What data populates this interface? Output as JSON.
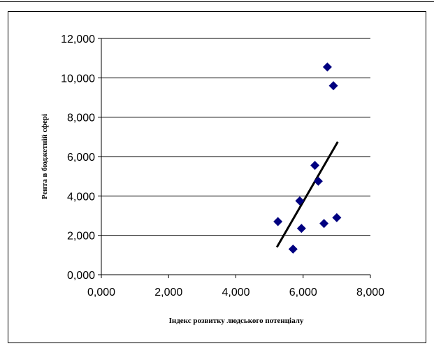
{
  "chart_data": {
    "type": "scatter",
    "title": "",
    "xlabel": "Індекс розвитку людського потенціалу",
    "ylabel": "Рента в бюджетній сфері",
    "xlim": [
      0,
      8
    ],
    "ylim": [
      0,
      12
    ],
    "x_ticks": [
      "0,000",
      "2,000",
      "4,000",
      "6,000",
      "8,000"
    ],
    "y_ticks": [
      "0,000",
      "2,000",
      "4,000",
      "6,000",
      "8,000",
      "10,000",
      "12,000"
    ],
    "horizontal_grid": true,
    "vertical_grid": false,
    "legend": "none",
    "marker": "diamond",
    "marker_color": "#000080",
    "trendline_color": "#000000",
    "points": [
      {
        "x": 5.25,
        "y": 2.7
      },
      {
        "x": 5.7,
        "y": 1.3
      },
      {
        "x": 5.9,
        "y": 3.75
      },
      {
        "x": 5.95,
        "y": 2.35
      },
      {
        "x": 6.35,
        "y": 5.55
      },
      {
        "x": 6.45,
        "y": 4.75
      },
      {
        "x": 6.62,
        "y": 2.6
      },
      {
        "x": 6.72,
        "y": 10.55
      },
      {
        "x": 6.9,
        "y": 9.6
      },
      {
        "x": 7.0,
        "y": 2.9
      }
    ],
    "trendline": {
      "x1": 5.22,
      "y1": 1.4,
      "x2": 7.03,
      "y2": 6.75
    }
  }
}
